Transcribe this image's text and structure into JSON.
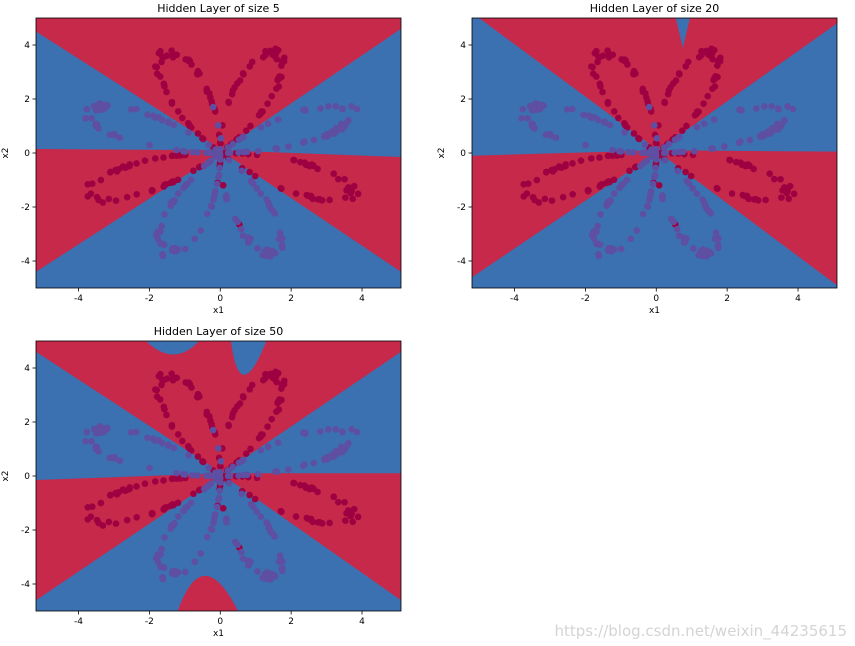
{
  "colors": {
    "red_region": "#c7294a",
    "blue_region": "#3b70b1",
    "red_point": "#9e0142",
    "blue_point": "#5e4fa2"
  },
  "watermark": "https://blog.csdn.net/weixin_44235615",
  "chart_data": [
    {
      "type": "scatter",
      "title": "Hidden Layer of size 5",
      "xlabel": "x1",
      "ylabel": "x2",
      "xlim": [
        -5.2,
        5.1
      ],
      "ylim": [
        -5.0,
        5.0
      ],
      "xticks": [
        "-4",
        "-2",
        "0",
        "2",
        "4"
      ],
      "yticks": [
        "4",
        "2",
        "0",
        "-2",
        "-4"
      ],
      "background": "decision boundary regions (red / blue)",
      "series": [
        {
          "label_value": 0
        },
        {
          "label_value": 1
        }
      ]
    },
    {
      "type": "scatter",
      "title": "Hidden Layer of size 20",
      "xlabel": "x1",
      "ylabel": "x2",
      "xlim": [
        -5.2,
        5.1
      ],
      "ylim": [
        -5.0,
        5.0
      ],
      "xticks": [
        "-4",
        "-2",
        "0",
        "2",
        "4"
      ],
      "yticks": [
        "4",
        "2",
        "0",
        "-2",
        "-4"
      ],
      "background": "decision boundary regions (red / blue)",
      "series": [
        {
          "label_value": 0
        },
        {
          "label_value": 1
        }
      ]
    },
    {
      "type": "scatter",
      "title": "Hidden Layer of size 50",
      "xlabel": "x1",
      "ylabel": "x2",
      "xlim": [
        -5.2,
        5.1
      ],
      "ylim": [
        -5.0,
        5.0
      ],
      "xticks": [
        "-4",
        "-2",
        "0",
        "2",
        "4"
      ],
      "yticks": [
        "4",
        "2",
        "0",
        "-2",
        "-4"
      ],
      "background": "decision boundary regions (red / blue)",
      "series": [
        {
          "label_value": 0
        },
        {
          "label_value": 1
        }
      ]
    }
  ]
}
